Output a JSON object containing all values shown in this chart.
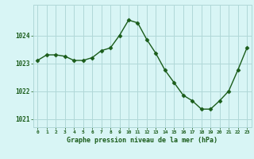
{
  "x": [
    0,
    1,
    2,
    3,
    4,
    5,
    6,
    7,
    8,
    9,
    10,
    11,
    12,
    13,
    14,
    15,
    16,
    17,
    18,
    19,
    20,
    21,
    22,
    23
  ],
  "y": [
    1023.1,
    1023.3,
    1023.3,
    1023.25,
    1023.1,
    1023.1,
    1023.2,
    1023.45,
    1023.55,
    1024.0,
    1024.55,
    1024.45,
    1023.85,
    1023.35,
    1022.75,
    1022.3,
    1021.85,
    1021.65,
    1021.35,
    1021.35,
    1021.65,
    1022.0,
    1022.75,
    1023.55
  ],
  "line_color": "#1a5c1a",
  "marker": "D",
  "marker_size": 2.5,
  "bg_color": "#d8f5f5",
  "grid_color": "#b0d8d8",
  "xlabel": "Graphe pression niveau de la mer (hPa)",
  "xlabel_color": "#1a5c1a",
  "tick_color": "#1a5c1a",
  "ylim": [
    1020.7,
    1025.1
  ],
  "yticks": [
    1021,
    1022,
    1023,
    1024
  ],
  "xticks": [
    0,
    1,
    2,
    3,
    4,
    5,
    6,
    7,
    8,
    9,
    10,
    11,
    12,
    13,
    14,
    15,
    16,
    17,
    18,
    19,
    20,
    21,
    22,
    23
  ],
  "figsize": [
    3.2,
    2.0
  ],
  "dpi": 100
}
